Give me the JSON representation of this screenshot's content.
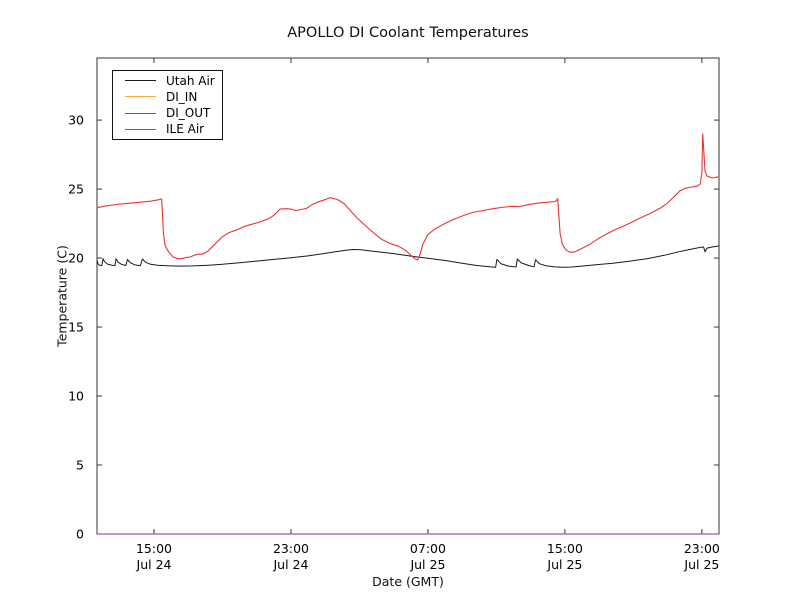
{
  "chart_data": {
    "type": "line",
    "title": "APOLLO DI Coolant Temperatures",
    "xlabel": "Date (GMT)",
    "ylabel": "Temperature (C)",
    "ylim": [
      0,
      34.5
    ],
    "yticks": [
      0,
      5,
      10,
      15,
      20,
      25,
      30
    ],
    "xlim_hours": [
      11.67,
      48.0
    ],
    "grid": false,
    "xticks": [
      {
        "hour": 15,
        "time": "15:00",
        "date": "Jul 24"
      },
      {
        "hour": 23,
        "time": "23:00",
        "date": "Jul 24"
      },
      {
        "hour": 31,
        "time": "07:00",
        "date": "Jul 25"
      },
      {
        "hour": 39,
        "time": "15:00",
        "date": "Jul 25"
      },
      {
        "hour": 47,
        "time": "23:00",
        "date": "Jul 25"
      }
    ],
    "legend": {
      "position": "upper-left",
      "entries": [
        {
          "label": "Utah Air",
          "color": "#1a1a1a"
        },
        {
          "label": "DI_IN",
          "color": "#ffa640"
        },
        {
          "label": "DI_OUT",
          "color": "#9a3aa8"
        },
        {
          "label": "ILE Air",
          "color": "#e93434"
        }
      ]
    },
    "series": [
      {
        "name": "Utah Air",
        "color": "#1a1a1a",
        "width": 1.0,
        "opacity": 1,
        "points": [
          [
            11.67,
            19.85
          ],
          [
            11.72,
            19.6
          ],
          [
            11.78,
            19.5
          ],
          [
            11.95,
            19.45
          ],
          [
            12.02,
            19.95
          ],
          [
            12.1,
            19.75
          ],
          [
            12.3,
            19.55
          ],
          [
            12.55,
            19.48
          ],
          [
            12.72,
            19.45
          ],
          [
            12.78,
            19.95
          ],
          [
            12.9,
            19.7
          ],
          [
            13.1,
            19.55
          ],
          [
            13.35,
            19.46
          ],
          [
            13.45,
            19.9
          ],
          [
            13.6,
            19.68
          ],
          [
            13.85,
            19.52
          ],
          [
            14.2,
            19.44
          ],
          [
            14.32,
            19.93
          ],
          [
            14.5,
            19.7
          ],
          [
            14.8,
            19.55
          ],
          [
            15.2,
            19.48
          ],
          [
            15.8,
            19.44
          ],
          [
            16.5,
            19.42
          ],
          [
            17.3,
            19.43
          ],
          [
            18.2,
            19.48
          ],
          [
            19.0,
            19.55
          ],
          [
            20.0,
            19.66
          ],
          [
            21.0,
            19.78
          ],
          [
            22.0,
            19.9
          ],
          [
            23.0,
            20.02
          ],
          [
            24.0,
            20.16
          ],
          [
            24.8,
            20.3
          ],
          [
            25.5,
            20.44
          ],
          [
            26.1,
            20.55
          ],
          [
            26.6,
            20.62
          ],
          [
            27.1,
            20.6
          ],
          [
            27.6,
            20.52
          ],
          [
            28.3,
            20.42
          ],
          [
            29.0,
            20.32
          ],
          [
            30.0,
            20.14
          ],
          [
            31.0,
            19.98
          ],
          [
            32.0,
            19.82
          ],
          [
            33.0,
            19.62
          ],
          [
            33.8,
            19.47
          ],
          [
            34.5,
            19.38
          ],
          [
            34.95,
            19.33
          ],
          [
            35.03,
            19.9
          ],
          [
            35.25,
            19.6
          ],
          [
            35.7,
            19.42
          ],
          [
            36.15,
            19.35
          ],
          [
            36.22,
            19.93
          ],
          [
            36.45,
            19.65
          ],
          [
            36.9,
            19.45
          ],
          [
            37.2,
            19.37
          ],
          [
            37.28,
            19.88
          ],
          [
            37.5,
            19.6
          ],
          [
            37.9,
            19.44
          ],
          [
            38.4,
            19.36
          ],
          [
            38.9,
            19.33
          ],
          [
            39.4,
            19.35
          ],
          [
            40.0,
            19.42
          ],
          [
            40.8,
            19.52
          ],
          [
            41.8,
            19.63
          ],
          [
            42.8,
            19.78
          ],
          [
            43.8,
            19.95
          ],
          [
            44.8,
            20.2
          ],
          [
            45.8,
            20.5
          ],
          [
            46.5,
            20.68
          ],
          [
            46.95,
            20.78
          ],
          [
            47.1,
            20.8
          ],
          [
            47.18,
            20.45
          ],
          [
            47.3,
            20.72
          ],
          [
            47.6,
            20.8
          ],
          [
            48.0,
            20.88
          ]
        ]
      },
      {
        "name": "DI_IN",
        "color": "#ffa640",
        "width": 1.0,
        "opacity": 0.9,
        "points": [
          [
            11.67,
            0
          ],
          [
            48.0,
            0
          ]
        ]
      },
      {
        "name": "DI_OUT",
        "color": "#9a3aa8",
        "width": 1.3,
        "opacity": 0.8,
        "points": [
          [
            11.67,
            0
          ],
          [
            48.0,
            0
          ]
        ]
      },
      {
        "name": "ILE Air",
        "color": "#e93434",
        "width": 1.1,
        "opacity": 1,
        "points": [
          [
            11.67,
            23.65
          ],
          [
            12.2,
            23.78
          ],
          [
            12.8,
            23.88
          ],
          [
            13.5,
            23.97
          ],
          [
            14.2,
            24.05
          ],
          [
            14.8,
            24.12
          ],
          [
            15.25,
            24.22
          ],
          [
            15.45,
            24.28
          ],
          [
            15.5,
            23.0
          ],
          [
            15.55,
            21.8
          ],
          [
            15.65,
            20.9
          ],
          [
            15.85,
            20.45
          ],
          [
            16.1,
            20.1
          ],
          [
            16.35,
            19.97
          ],
          [
            16.6,
            19.95
          ],
          [
            16.9,
            20.05
          ],
          [
            17.1,
            20.08
          ],
          [
            17.3,
            20.18
          ],
          [
            17.55,
            20.28
          ],
          [
            17.8,
            20.28
          ],
          [
            18.1,
            20.45
          ],
          [
            18.35,
            20.75
          ],
          [
            18.7,
            21.2
          ],
          [
            19.0,
            21.55
          ],
          [
            19.4,
            21.85
          ],
          [
            19.85,
            22.05
          ],
          [
            20.3,
            22.3
          ],
          [
            20.7,
            22.45
          ],
          [
            21.2,
            22.62
          ],
          [
            21.7,
            22.85
          ],
          [
            22.0,
            23.1
          ],
          [
            22.35,
            23.55
          ],
          [
            22.7,
            23.58
          ],
          [
            23.0,
            23.55
          ],
          [
            23.3,
            23.45
          ],
          [
            23.6,
            23.52
          ],
          [
            23.9,
            23.6
          ],
          [
            24.2,
            23.85
          ],
          [
            24.55,
            24.05
          ],
          [
            24.9,
            24.2
          ],
          [
            25.3,
            24.38
          ],
          [
            25.7,
            24.25
          ],
          [
            26.1,
            23.95
          ],
          [
            26.5,
            23.4
          ],
          [
            26.9,
            22.85
          ],
          [
            27.3,
            22.4
          ],
          [
            27.8,
            21.85
          ],
          [
            28.3,
            21.35
          ],
          [
            28.8,
            21.05
          ],
          [
            29.3,
            20.85
          ],
          [
            29.7,
            20.55
          ],
          [
            30.0,
            20.2
          ],
          [
            30.25,
            19.95
          ],
          [
            30.4,
            19.85
          ],
          [
            30.55,
            20.3
          ],
          [
            30.7,
            21.0
          ],
          [
            31.0,
            21.7
          ],
          [
            31.4,
            22.1
          ],
          [
            31.9,
            22.45
          ],
          [
            32.4,
            22.75
          ],
          [
            33.0,
            23.05
          ],
          [
            33.6,
            23.3
          ],
          [
            34.2,
            23.45
          ],
          [
            34.9,
            23.6
          ],
          [
            35.5,
            23.7
          ],
          [
            36.0,
            23.75
          ],
          [
            36.3,
            23.72
          ],
          [
            36.6,
            23.8
          ],
          [
            37.0,
            23.9
          ],
          [
            37.5,
            24.0
          ],
          [
            38.0,
            24.05
          ],
          [
            38.45,
            24.1
          ],
          [
            38.58,
            24.3
          ],
          [
            38.65,
            23.0
          ],
          [
            38.72,
            21.8
          ],
          [
            38.85,
            21.0
          ],
          [
            39.05,
            20.6
          ],
          [
            39.3,
            20.42
          ],
          [
            39.6,
            20.45
          ],
          [
            40.0,
            20.7
          ],
          [
            40.45,
            21.0
          ],
          [
            41.0,
            21.45
          ],
          [
            41.45,
            21.75
          ],
          [
            42.0,
            22.1
          ],
          [
            42.4,
            22.3
          ],
          [
            43.0,
            22.65
          ],
          [
            43.4,
            22.9
          ],
          [
            44.0,
            23.25
          ],
          [
            44.55,
            23.6
          ],
          [
            45.0,
            24.0
          ],
          [
            45.35,
            24.4
          ],
          [
            45.7,
            24.85
          ],
          [
            46.0,
            25.05
          ],
          [
            46.4,
            25.15
          ],
          [
            46.7,
            25.2
          ],
          [
            46.9,
            25.35
          ],
          [
            47.0,
            26.2
          ],
          [
            47.05,
            29.0
          ],
          [
            47.1,
            28.0
          ],
          [
            47.18,
            26.3
          ],
          [
            47.3,
            25.95
          ],
          [
            47.6,
            25.8
          ],
          [
            48.0,
            25.9
          ]
        ]
      }
    ]
  }
}
